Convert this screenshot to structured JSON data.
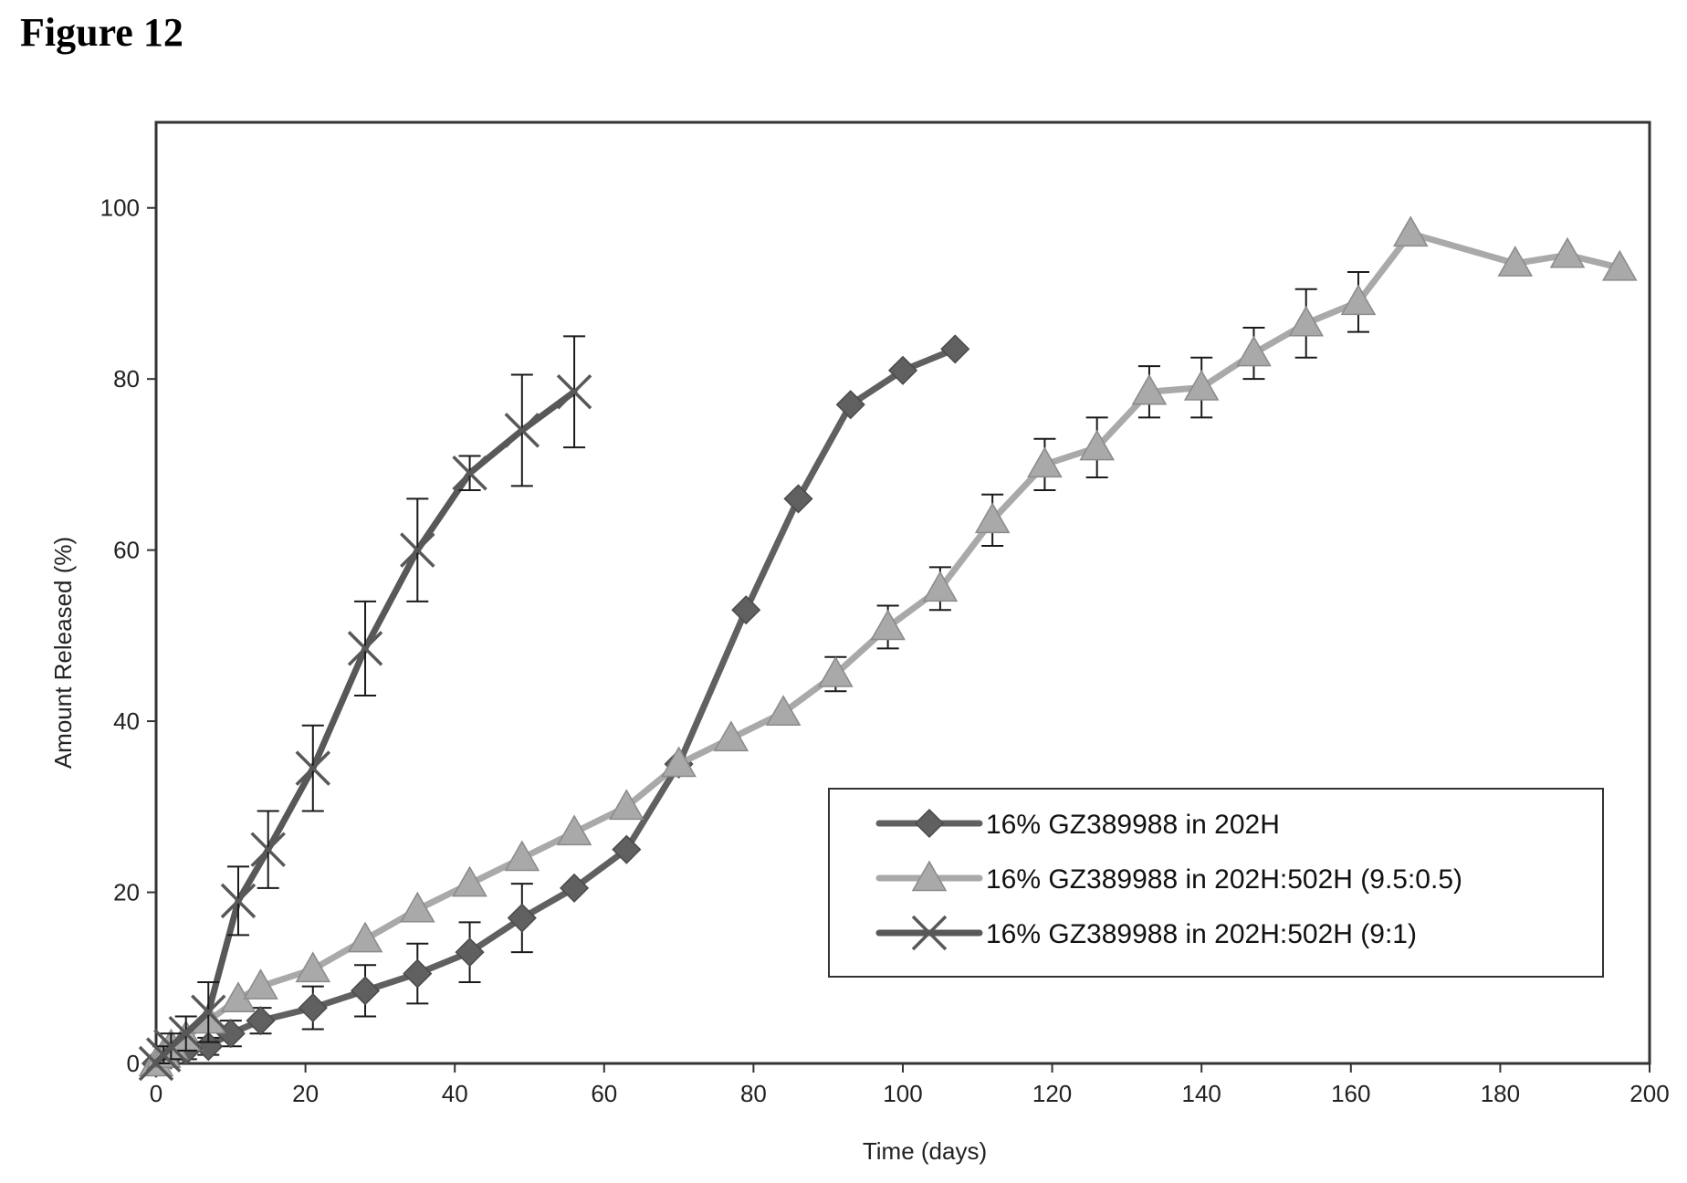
{
  "figure_label": "Figure 12",
  "colors": {
    "series_202H": "#606060",
    "series_9_5": "#a9a9a9",
    "series_9_1": "#585858",
    "axis": "#333333",
    "error_bar": "#1a1a1a"
  },
  "chart_data": {
    "type": "line",
    "title": "",
    "xlabel": "Time (days)",
    "ylabel": "Amount Released (%)",
    "xlim": [
      0,
      200
    ],
    "ylim": [
      0,
      110
    ],
    "xticks": [
      0,
      20,
      40,
      60,
      80,
      100,
      120,
      140,
      160,
      180,
      200
    ],
    "yticks": [
      0,
      20,
      40,
      60,
      80,
      100
    ],
    "xtick_labels": [
      "0",
      "20",
      "40",
      "60",
      "80",
      "100",
      "120",
      "140",
      "160",
      "180",
      "200"
    ],
    "ytick_labels": [
      "0",
      "20",
      "40",
      "60",
      "80",
      "100"
    ],
    "grid": false,
    "legend_position": "bottom-right",
    "series": [
      {
        "name": "16% GZ389988 in 202H",
        "marker": "diamond",
        "color": "#606060",
        "x": [
          0,
          1,
          2,
          4,
          7,
          10,
          14,
          21,
          28,
          35,
          42,
          49,
          56,
          63,
          70,
          79,
          86,
          93,
          100,
          107
        ],
        "y": [
          0,
          0.5,
          1,
          1.5,
          2,
          3.5,
          5,
          6.5,
          8.5,
          10.5,
          13,
          17,
          20.5,
          25,
          35,
          53,
          66,
          77,
          81,
          83.5
        ],
        "err": [
          0,
          0.5,
          0.5,
          1,
          1,
          1.5,
          1.5,
          2.5,
          3,
          3.5,
          3.5,
          4,
          0,
          0,
          0,
          0,
          0,
          0,
          0,
          0
        ]
      },
      {
        "name": "16% GZ389988 in 202H:502H (9.5:0.5)",
        "marker": "triangle",
        "color": "#a9a9a9",
        "x": [
          0,
          1,
          2,
          4,
          7,
          11,
          14,
          21,
          28,
          35,
          42,
          49,
          56,
          63,
          70,
          77,
          84,
          91,
          98,
          105,
          112,
          119,
          126,
          133,
          140,
          147,
          154,
          161,
          168,
          182,
          189,
          196
        ],
        "y": [
          0,
          1,
          2,
          3,
          5,
          7.5,
          9,
          11,
          14.5,
          18,
          21,
          24,
          27,
          30,
          35,
          38,
          41,
          45.5,
          51,
          55.5,
          63.5,
          70,
          72,
          78.5,
          79,
          83,
          86.5,
          89,
          97,
          93.5,
          94.5,
          93
        ],
        "err": [
          0,
          0,
          0,
          0,
          0,
          0,
          0,
          0,
          0,
          0,
          0,
          0,
          0,
          0,
          0,
          0,
          0,
          2,
          2.5,
          2.5,
          3,
          3,
          3.5,
          3,
          3.5,
          3,
          4,
          3.5,
          0,
          0,
          0,
          0
        ]
      },
      {
        "name": "16% GZ389988 in 202H:502H (9:1)",
        "marker": "x",
        "color": "#585858",
        "x": [
          0,
          1,
          2,
          4,
          7,
          11,
          15,
          21,
          28,
          35,
          42,
          49,
          56
        ],
        "y": [
          0,
          1,
          2,
          3.5,
          6,
          19,
          25,
          34.5,
          48.5,
          60,
          69,
          74,
          78.5
        ],
        "err": [
          0,
          1,
          1.5,
          2,
          3.5,
          4,
          4.5,
          5,
          5.5,
          6,
          2,
          6.5,
          6.5
        ]
      }
    ]
  }
}
